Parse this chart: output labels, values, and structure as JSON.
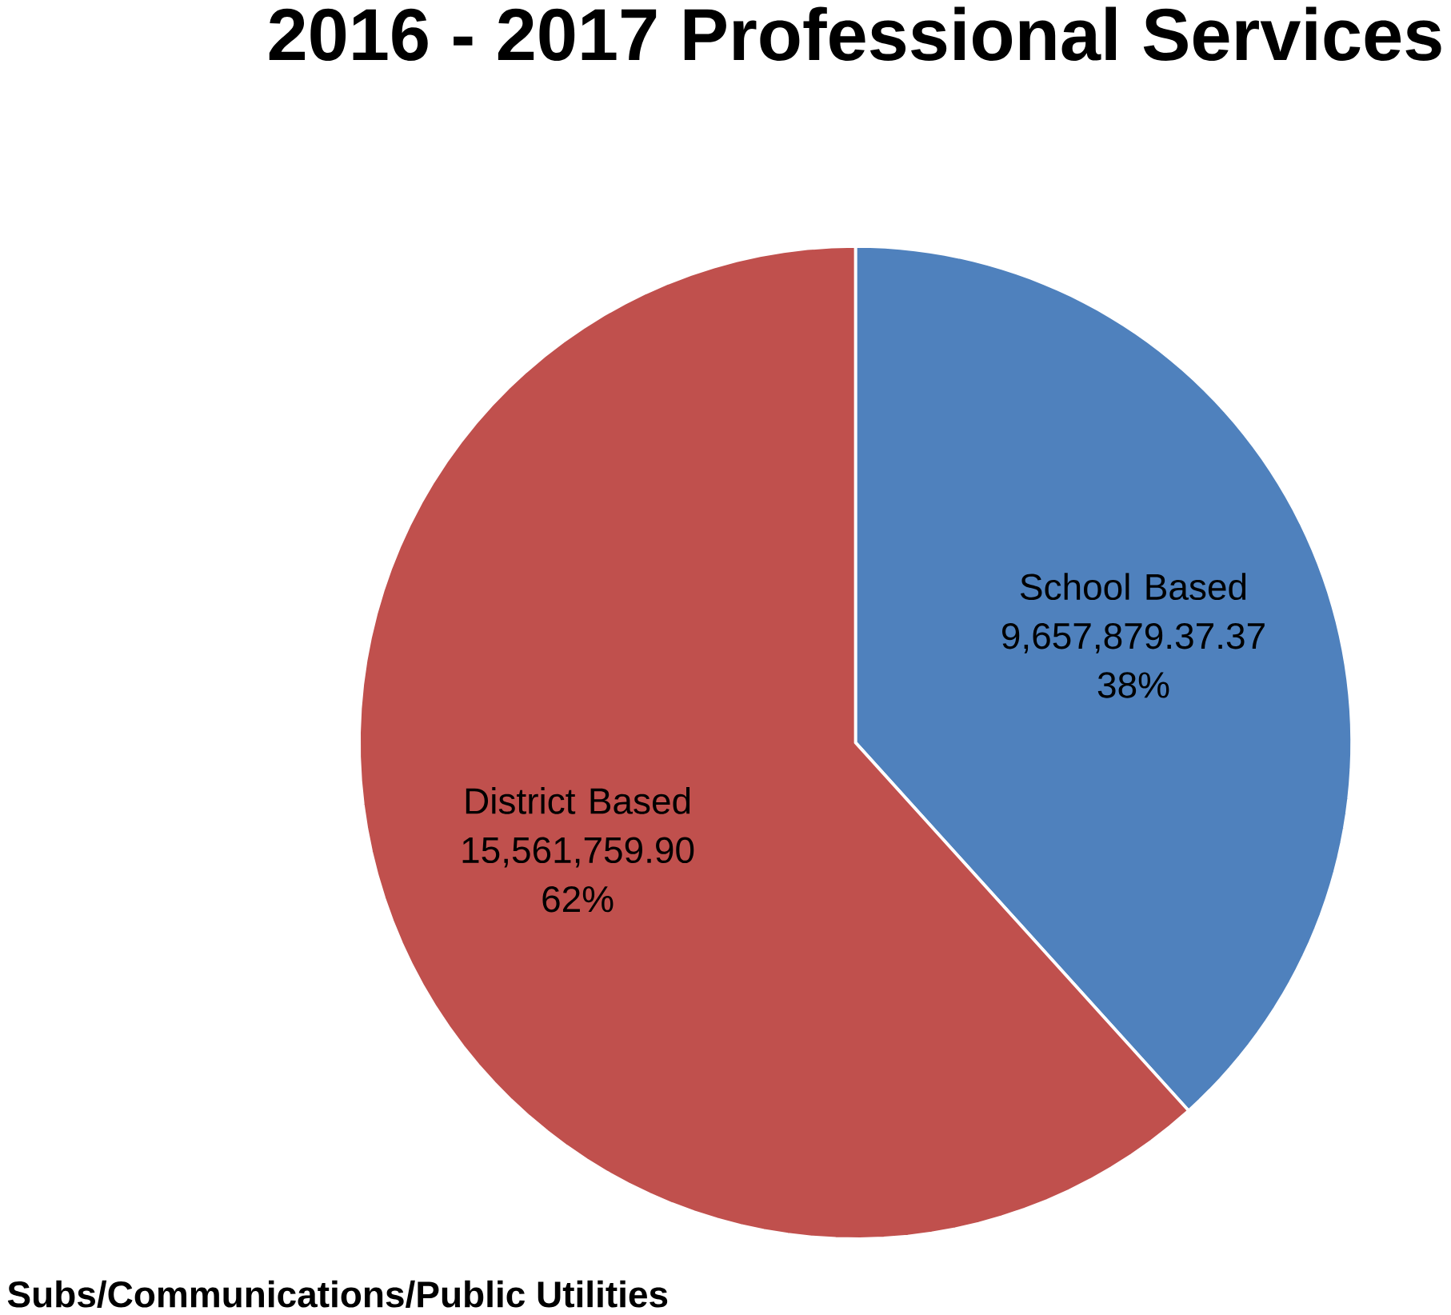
{
  "chart_data": {
    "type": "pie",
    "title": "2016 - 2017 Professional Services",
    "categories": [
      "School Based",
      "District Based"
    ],
    "values": [
      9657879.37,
      15561759.9
    ],
    "value_labels": [
      "9,657,879.37.37  38%",
      "15,561,759.90 62%"
    ],
    "colors": [
      "#4f81bd",
      "#c0504d"
    ],
    "annotations": [
      "Subs/Communications/Public Utilities"
    ]
  }
}
